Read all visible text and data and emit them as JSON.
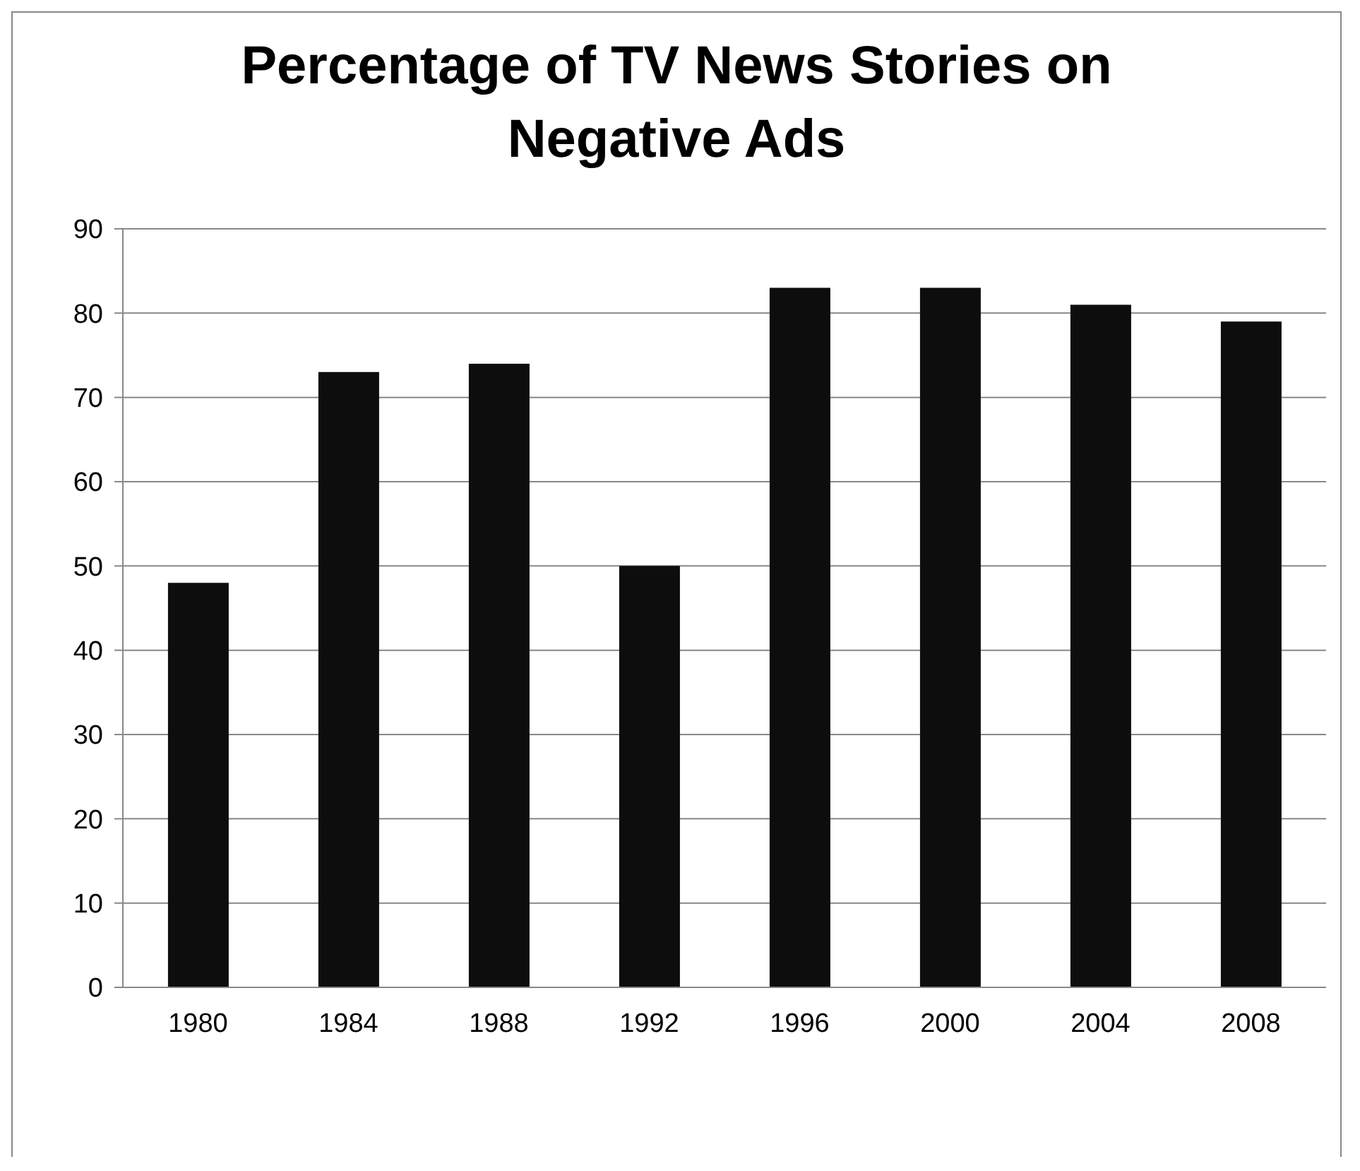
{
  "chart_data": {
    "type": "bar",
    "title": "Percentage of TV News Stories on Negative Ads",
    "categories": [
      "1980",
      "1984",
      "1988",
      "1992",
      "1996",
      "2000",
      "2004",
      "2008"
    ],
    "values": [
      48,
      73,
      74,
      50,
      83,
      83,
      81,
      79
    ],
    "color": "#0d0d0d",
    "ylim": [
      0,
      90
    ],
    "yticks": [
      0,
      10,
      20,
      30,
      40,
      50,
      60,
      70,
      80,
      90
    ],
    "grid": "y"
  }
}
